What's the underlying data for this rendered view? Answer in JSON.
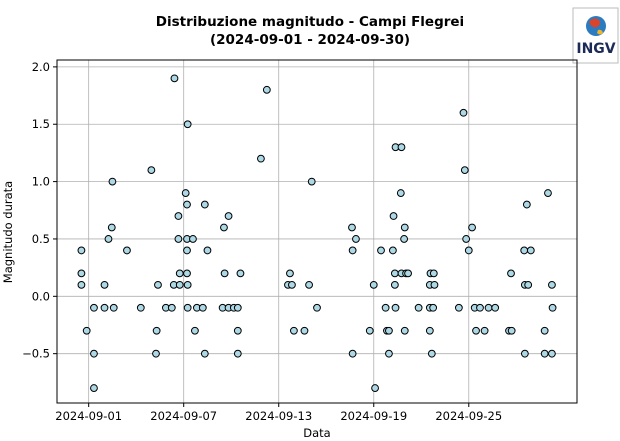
{
  "logo": {
    "text": "INGV"
  },
  "chart_data": {
    "type": "scatter",
    "title": "Distribuzione magnitudo - Campi Flegrei",
    "subtitle": "(2024-09-01 - 2024-09-30)",
    "x_label": "Data",
    "y_label": "Magnitudo durata",
    "color": "#add8e6",
    "edge_color": "#000000",
    "grid": true,
    "xlim": [
      "2024-08-30T00:00",
      "2024-10-01T20:00"
    ],
    "ylim": [
      -0.93,
      2.06
    ],
    "xticks": [
      "2024-09-01",
      "2024-09-07",
      "2024-09-13",
      "2024-09-19",
      "2024-09-25"
    ],
    "yticks": [
      {
        "value": -0.5,
        "label": "−0.5"
      },
      {
        "value": 0,
        "label": "0.0"
      },
      0.5,
      {
        "value": 1,
        "label": "1.0"
      },
      1.5,
      {
        "value": 2,
        "label": "2.0"
      }
    ],
    "x": [
      "2024-08-31T13:00",
      "2024-08-31T13:00",
      "2024-08-31T13:00",
      "2024-08-31T21:00",
      "2024-09-01T08:00",
      "2024-09-01T08:00",
      "2024-09-01T08:00",
      "2024-09-02T00:00",
      "2024-09-02T00:00",
      "2024-09-02T06:00",
      "2024-09-02T11:00",
      "2024-09-02T12:00",
      "2024-09-02T14:00",
      "2024-09-03T10:00",
      "2024-09-04T07:00",
      "2024-09-04T23:00",
      "2024-09-05T06:00",
      "2024-09-05T07:00",
      "2024-09-05T09:00",
      "2024-09-05T21:00",
      "2024-09-06T06:00",
      "2024-09-06T09:00",
      "2024-09-06T10:00",
      "2024-09-06T16:00",
      "2024-09-06T16:00",
      "2024-09-06T18:00",
      "2024-09-06T18:00",
      "2024-09-07T03:00",
      "2024-09-07T05:00",
      "2024-09-07T06:00",
      "2024-09-07T05:00",
      "2024-09-07T05:00",
      "2024-09-07T05:00",
      "2024-09-07T06:00",
      "2024-09-07T06:00",
      "2024-09-07T14:00",
      "2024-09-07T17:00",
      "2024-09-07T20:00",
      "2024-09-08T05:00",
      "2024-09-08T08:00",
      "2024-09-08T08:00",
      "2024-09-08T12:00",
      "2024-09-09T11:00",
      "2024-09-09T13:00",
      "2024-09-09T14:00",
      "2024-09-09T20:00",
      "2024-09-09T20:00",
      "2024-09-10T04:00",
      "2024-09-10T10:00",
      "2024-09-10T10:00",
      "2024-09-10T10:00",
      "2024-09-10T14:00",
      "2024-09-11T21:00",
      "2024-09-12T06:00",
      "2024-09-13T14:00",
      "2024-09-13T17:00",
      "2024-09-13T20:00",
      "2024-09-13T23:00",
      "2024-09-14T15:00",
      "2024-09-14T22:00",
      "2024-09-15T02:00",
      "2024-09-15T10:00",
      "2024-09-17T15:00",
      "2024-09-17T16:00",
      "2024-09-17T16:00",
      "2024-09-17T21:00",
      "2024-09-18T18:00",
      "2024-09-19T00:00",
      "2024-09-19T02:00",
      "2024-09-19T11:00",
      "2024-09-19T18:00",
      "2024-09-19T20:00",
      "2024-09-19T23:00",
      "2024-09-19T23:00",
      "2024-09-20T05:00",
      "2024-09-20T06:00",
      "2024-09-20T08:00",
      "2024-09-20T08:00",
      "2024-09-20T09:00",
      "2024-09-20T09:00",
      "2024-09-20T18:00",
      "2024-09-20T17:00",
      "2024-09-20T18:00",
      "2024-09-20T22:00",
      "2024-09-20T23:00",
      "2024-09-20T23:00",
      "2024-09-21T01:00",
      "2024-09-21T04:00",
      "2024-09-21T20:00",
      "2024-09-22T13:00",
      "2024-09-22T13:00",
      "2024-09-22T13:00",
      "2024-09-22T14:00",
      "2024-09-22T16:00",
      "2024-09-22T18:00",
      "2024-09-22T19:00",
      "2024-09-22T20:00",
      "2024-09-24T09:00",
      "2024-09-24T16:00",
      "2024-09-24T18:00",
      "2024-09-24T20:00",
      "2024-09-25T00:00",
      "2024-09-25T05:00",
      "2024-09-25T09:00",
      "2024-09-25T11:00",
      "2024-09-25T17:00",
      "2024-09-26T00:00",
      "2024-09-26T06:00",
      "2024-09-26T16:00",
      "2024-09-27T13:00",
      "2024-09-27T16:00",
      "2024-09-27T17:00",
      "2024-09-28T12:00",
      "2024-09-28T13:00",
      "2024-09-28T13:00",
      "2024-09-28T16:00",
      "2024-09-28T18:00",
      "2024-09-28T22:00",
      "2024-09-29T19:00",
      "2024-09-29T19:00",
      "2024-09-30T00:00",
      "2024-09-30T06:00",
      "2024-09-30T06:00",
      "2024-09-30T07:00"
    ],
    "values": [
      0.4,
      0.2,
      0.1,
      -0.3,
      -0.5,
      -0.8,
      -0.1,
      0.1,
      -0.1,
      0.5,
      0.6,
      1.0,
      -0.1,
      0.4,
      -0.1,
      1.1,
      -0.5,
      -0.3,
      0.1,
      -0.1,
      -0.1,
      0.1,
      1.9,
      0.7,
      0.5,
      0.2,
      0.1,
      0.9,
      0.8,
      1.5,
      0.5,
      0.4,
      0.2,
      0.1,
      -0.1,
      0.5,
      -0.3,
      -0.1,
      -0.1,
      0.8,
      -0.5,
      0.4,
      -0.1,
      0.6,
      0.2,
      0.7,
      -0.1,
      -0.1,
      -0.1,
      -0.3,
      -0.5,
      0.2,
      1.2,
      1.8,
      0.1,
      0.2,
      0.1,
      -0.3,
      -0.3,
      0.1,
      1.0,
      -0.1,
      0.6,
      0.4,
      -0.5,
      0.5,
      -0.3,
      0.1,
      -0.8,
      0.4,
      -0.1,
      -0.3,
      -0.3,
      -0.5,
      0.4,
      0.7,
      0.2,
      0.1,
      1.3,
      -0.1,
      1.3,
      0.9,
      0.2,
      0.5,
      0.6,
      -0.3,
      0.2,
      0.2,
      -0.1,
      -0.1,
      0.1,
      -0.3,
      0.2,
      -0.5,
      -0.1,
      0.2,
      0.1,
      -0.1,
      1.6,
      1.1,
      0.5,
      0.4,
      0.6,
      -0.1,
      -0.3,
      -0.1,
      -0.3,
      -0.1,
      -0.1,
      -0.3,
      0.2,
      -0.3,
      0.4,
      0.1,
      -0.5,
      0.8,
      0.1,
      0.4,
      -0.3,
      -0.5,
      0.9,
      -0.5,
      0.1,
      -0.1
    ]
  }
}
